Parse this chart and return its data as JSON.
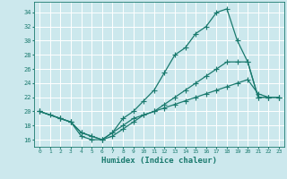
{
  "xlabel": "Humidex (Indice chaleur)",
  "background_color": "#cce8ed",
  "grid_color": "#ffffff",
  "line_color": "#1a7a6e",
  "xlim": [
    -0.5,
    23.5
  ],
  "ylim": [
    15.0,
    35.5
  ],
  "xticks": [
    0,
    1,
    2,
    3,
    4,
    5,
    6,
    7,
    8,
    9,
    10,
    11,
    12,
    13,
    14,
    15,
    16,
    17,
    18,
    19,
    20,
    21,
    22,
    23
  ],
  "yticks": [
    16,
    18,
    20,
    22,
    24,
    26,
    28,
    30,
    32,
    34
  ],
  "line1_x": [
    0,
    1,
    2,
    3,
    4,
    5,
    6,
    7,
    8,
    9,
    10,
    11,
    12,
    13,
    14,
    15,
    16,
    17,
    18,
    19,
    20,
    21,
    22,
    23
  ],
  "line1_y": [
    20,
    19.5,
    19,
    18.5,
    16.5,
    16,
    16,
    17,
    19,
    20,
    21.5,
    23,
    25.5,
    28,
    29,
    31,
    32,
    34,
    34.5,
    30,
    27,
    22,
    22,
    22
  ],
  "line2_x": [
    0,
    2,
    3,
    4,
    5,
    6,
    7,
    8,
    9,
    10,
    11,
    12,
    13,
    14,
    15,
    16,
    17,
    18,
    19,
    20,
    21,
    22,
    23
  ],
  "line2_y": [
    20,
    19,
    18.5,
    17,
    16.5,
    16,
    17,
    18,
    19,
    19.5,
    20,
    20.5,
    21,
    21.5,
    22,
    22.5,
    23,
    23.5,
    24,
    24.5,
    22.5,
    22,
    22
  ],
  "line3_x": [
    0,
    2,
    3,
    4,
    5,
    6,
    7,
    8,
    9,
    10,
    11,
    12,
    13,
    14,
    15,
    16,
    17,
    18,
    19,
    20,
    21,
    22,
    23
  ],
  "line3_y": [
    20,
    19,
    18.5,
    17,
    16.5,
    16,
    16.5,
    17.5,
    18.5,
    19.5,
    20,
    21,
    22,
    23,
    24,
    25,
    26,
    27,
    27,
    27,
    22,
    22,
    22
  ]
}
